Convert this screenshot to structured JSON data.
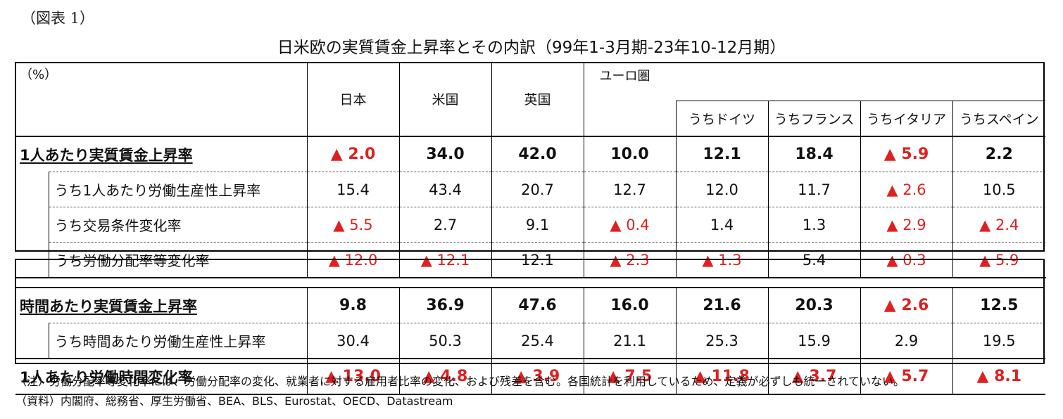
{
  "figure_label": "（図表 1）",
  "title": "日米欧の実質賃金上昇率とその内訳（99年1-3月期-23年10-12月期）",
  "header": {
    "unit": "（%）",
    "japan": "日本",
    "us": "米国",
    "uk": "英国",
    "euro": "ユーロ圏",
    "germany": "うちドイツ",
    "france": "うちフランス",
    "italy": "うちイタリア",
    "spain": "うちスペイン"
  },
  "rows": [
    {
      "label": "1人あたり実質賃金上昇率",
      "values": [
        "▲ 2.0",
        "34.0",
        "42.0",
        "10.0",
        "12.1",
        "18.4",
        "▲ 5.9",
        "2.2"
      ]
    },
    {
      "label": "うち1人あたり労働生産性上昇率",
      "values": [
        "15.4",
        "43.4",
        "20.7",
        "12.7",
        "12.0",
        "11.7",
        "▲ 2.6",
        "10.5"
      ]
    },
    {
      "label": "うち交易条件変化率",
      "values": [
        "▲ 5.5",
        "2.7",
        "9.1",
        "▲ 0.4",
        "1.4",
        "1.3",
        "▲ 2.9",
        "▲ 2.4"
      ]
    },
    {
      "label": "うち労働分配率等変化率",
      "values": [
        "▲ 12.0",
        "▲ 12.1",
        "12.1",
        "▲ 2.3",
        "▲ 1.3",
        "5.4",
        "▲ 0.3",
        "▲ 5.9"
      ]
    },
    {
      "label": "時間あたり実質賃金上昇率",
      "values": [
        "9.8",
        "36.9",
        "47.6",
        "16.0",
        "21.6",
        "20.3",
        "▲ 2.6",
        "12.5"
      ]
    },
    {
      "label": "うち時間あたり労働生産性上昇率",
      "values": [
        "30.4",
        "50.3",
        "25.4",
        "21.1",
        "25.3",
        "15.9",
        "2.9",
        "19.5"
      ]
    },
    {
      "label": "1人あたり労働時間変化率",
      "values": [
        "▲ 13.0",
        "▲ 4.8",
        "▲ 3.9",
        "▲ 7.5",
        "▲ 11.8",
        "▲ 3.7",
        "▲ 5.7",
        "▲ 8.1"
      ]
    }
  ],
  "notes": {
    "note": "（注）労働分配率等変化率には、労働分配率の変化、就業者に対する雇用者比率の変化、および残差を含む。各国統計を利用しているため、定義が必ずしも統一されていない。",
    "source": "（資料）内閣府、総務省、厚生労働省、BEA、BLS、Eurostat、OECD、Datastream"
  },
  "colors": {
    "negative": "#e02020",
    "text": "#111111"
  }
}
